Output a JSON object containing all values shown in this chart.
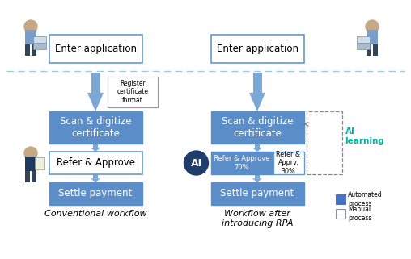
{
  "bg_color": "#ffffff",
  "blue_fill": "#5B8DC8",
  "blue_fill_dark": "#4472C4",
  "arrow_color": "#7BA7D4",
  "white_fill": "#ffffff",
  "white_border": "#6699CC",
  "ai_circle_color": "#1F3D6B",
  "dashed_line_color": "#99CCDD",
  "ai_learning_color": "#00B0A0",
  "legend_blue": "#4472C4",
  "title_left": "Conventional workflow",
  "title_right": "Workflow after\nintroducing RPA",
  "box_enter_app": "Enter application",
  "box_scan": "Scan & digitize\ncertificate",
  "box_refer_approve": "Refer & Approve",
  "box_settle": "Settle payment",
  "box_register": "Register\ncertificate\nformat",
  "box_refer_approve_70": "Refer & Approve\n70%",
  "box_refer_approve_30": "Refer &\nApprv.\n30%",
  "legend_auto": "Automated\nprocess",
  "legend_manual": "Manual\nprocess"
}
